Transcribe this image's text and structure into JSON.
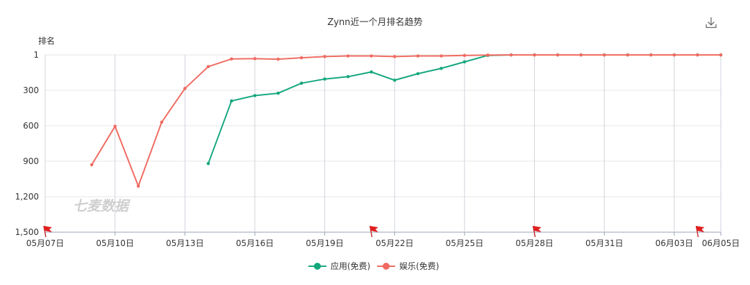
{
  "chart_data": {
    "type": "line",
    "title": "Zynn近一个月排名趋势",
    "ylabel": "排名",
    "xlabel": "",
    "x_start": "2020-05-07",
    "x_end": "2020-06-05",
    "x_tick_labels": [
      "05月07日",
      "05月10日",
      "05月13日",
      "05月16日",
      "05月19日",
      "05月22日",
      "05月25日",
      "05月28日",
      "05月31日",
      "06月03日",
      "06月05日"
    ],
    "y_tick_labels": [
      "1",
      "300",
      "600",
      "900",
      "1,200",
      "1,500"
    ],
    "y_tick_values": [
      1,
      300,
      600,
      900,
      1200,
      1500
    ],
    "ylim": [
      1,
      1500
    ],
    "y_inverted": true,
    "grid": true,
    "legend_position": "bottom-center",
    "watermark": "七麦数据",
    "flag_dates": [
      "2020-05-07",
      "2020-05-21",
      "2020-05-28",
      "2020-06-04"
    ],
    "series": [
      {
        "name": "应用(免费)",
        "color": "#14a77e",
        "points": [
          {
            "x": "2020-05-14",
            "y": 920
          },
          {
            "x": "2020-05-15",
            "y": 390
          },
          {
            "x": "2020-05-16",
            "y": 345
          },
          {
            "x": "2020-05-17",
            "y": 325
          },
          {
            "x": "2020-05-18",
            "y": 240
          },
          {
            "x": "2020-05-19",
            "y": 205
          },
          {
            "x": "2020-05-20",
            "y": 185
          },
          {
            "x": "2020-05-21",
            "y": 145
          },
          {
            "x": "2020-05-22",
            "y": 215
          },
          {
            "x": "2020-05-23",
            "y": 160
          },
          {
            "x": "2020-05-24",
            "y": 115
          },
          {
            "x": "2020-05-25",
            "y": 60
          },
          {
            "x": "2020-05-26",
            "y": 5
          },
          {
            "x": "2020-05-27",
            "y": 1
          },
          {
            "x": "2020-05-28",
            "y": 1
          },
          {
            "x": "2020-05-29",
            "y": 1
          },
          {
            "x": "2020-05-30",
            "y": 1
          },
          {
            "x": "2020-05-31",
            "y": 1
          },
          {
            "x": "2020-06-01",
            "y": 1
          },
          {
            "x": "2020-06-02",
            "y": 1
          },
          {
            "x": "2020-06-03",
            "y": 1
          },
          {
            "x": "2020-06-04",
            "y": 1
          },
          {
            "x": "2020-06-05",
            "y": 1
          }
        ]
      },
      {
        "name": "娱乐(免费)",
        "color": "#ef6b61",
        "points": [
          {
            "x": "2020-05-09",
            "y": 930
          },
          {
            "x": "2020-05-10",
            "y": 605
          },
          {
            "x": "2020-05-11",
            "y": 1110
          },
          {
            "x": "2020-05-12",
            "y": 570
          },
          {
            "x": "2020-05-13",
            "y": 285
          },
          {
            "x": "2020-05-14",
            "y": 100
          },
          {
            "x": "2020-05-15",
            "y": 35
          },
          {
            "x": "2020-05-16",
            "y": 33
          },
          {
            "x": "2020-05-17",
            "y": 37
          },
          {
            "x": "2020-05-18",
            "y": 25
          },
          {
            "x": "2020-05-19",
            "y": 15
          },
          {
            "x": "2020-05-20",
            "y": 10
          },
          {
            "x": "2020-05-21",
            "y": 10
          },
          {
            "x": "2020-05-22",
            "y": 15
          },
          {
            "x": "2020-05-23",
            "y": 10
          },
          {
            "x": "2020-05-24",
            "y": 10
          },
          {
            "x": "2020-05-25",
            "y": 5
          },
          {
            "x": "2020-05-26",
            "y": 2
          },
          {
            "x": "2020-05-27",
            "y": 1
          },
          {
            "x": "2020-05-28",
            "y": 1
          },
          {
            "x": "2020-05-29",
            "y": 1
          },
          {
            "x": "2020-05-30",
            "y": 1
          },
          {
            "x": "2020-05-31",
            "y": 1
          },
          {
            "x": "2020-06-01",
            "y": 1
          },
          {
            "x": "2020-06-02",
            "y": 1
          },
          {
            "x": "2020-06-03",
            "y": 1
          },
          {
            "x": "2020-06-04",
            "y": 1
          },
          {
            "x": "2020-06-05",
            "y": 1
          }
        ]
      }
    ]
  },
  "toolbar": {
    "download_icon": "download-icon",
    "flag_icon": "flag-icon",
    "flag_color": "#e02020"
  }
}
